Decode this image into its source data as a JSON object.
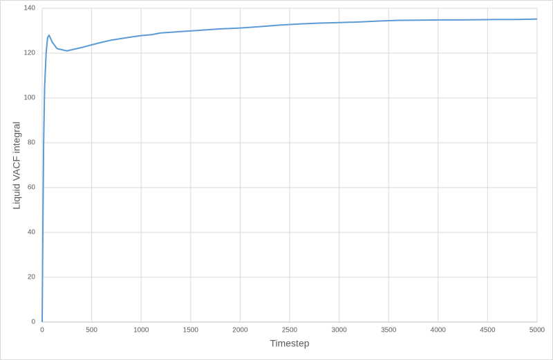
{
  "chart_data": {
    "type": "line",
    "x_label": "Timestep",
    "y_label": "Liquid VACF integral",
    "x": [
      0,
      5,
      15,
      25,
      40,
      55,
      70,
      100,
      150,
      200,
      250,
      300,
      400,
      500,
      600,
      700,
      800,
      900,
      1000,
      1100,
      1200,
      1400,
      1600,
      1800,
      2000,
      2200,
      2400,
      2600,
      2800,
      3000,
      3200,
      3400,
      3600,
      3800,
      4000,
      4200,
      4400,
      4600,
      4800,
      5000
    ],
    "series": [
      {
        "name": "Liquid VACF integral",
        "color": "#5b9bd5",
        "values": [
          0,
          30,
          80,
          105,
          120,
          127,
          128,
          125,
          122,
          121.5,
          121,
          121.5,
          122.5,
          123.7,
          124.8,
          125.8,
          126.5,
          127.2,
          127.8,
          128.2,
          129,
          129.6,
          130.2,
          130.8,
          131.2,
          131.8,
          132.5,
          133,
          133.4,
          133.6,
          133.9,
          134.3,
          134.6,
          134.7,
          134.8,
          134.8,
          134.9,
          135,
          135,
          135.2
        ]
      }
    ],
    "xlim": [
      0,
      5000
    ],
    "xticks": [
      0,
      500,
      1000,
      1500,
      2000,
      2500,
      3000,
      3500,
      4000,
      4500,
      5000
    ],
    "ylim": [
      0,
      140
    ],
    "yticks": [
      0,
      20,
      40,
      60,
      80,
      100,
      120,
      140
    ],
    "grid": true
  }
}
